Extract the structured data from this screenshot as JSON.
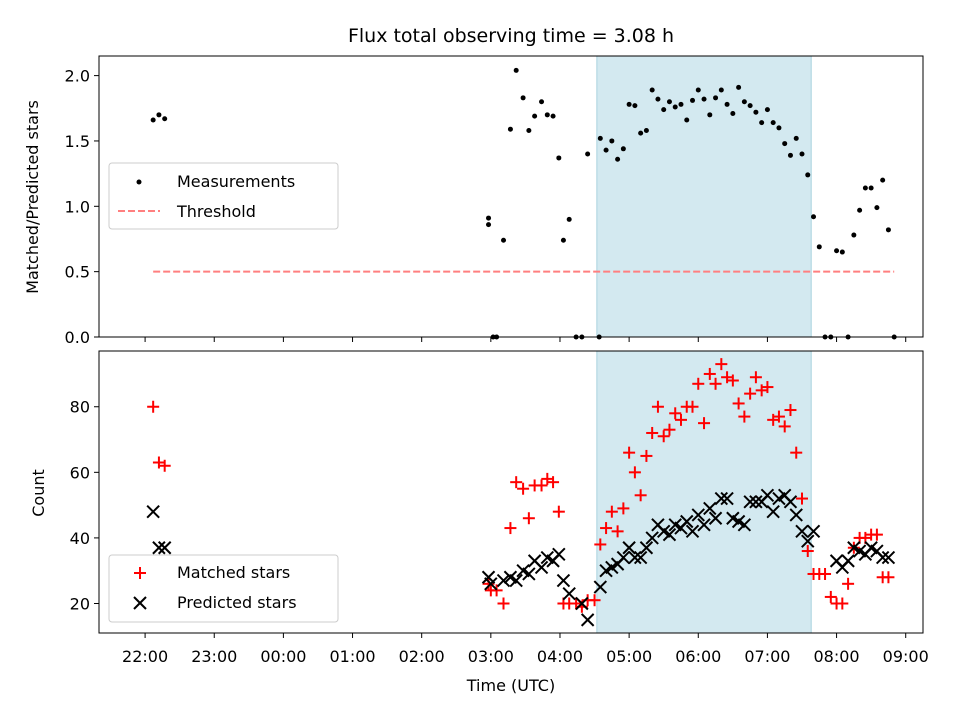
{
  "figure": {
    "title": "Flux total observing time = 3.08 h",
    "xlabel": "Time (UTC)",
    "x_ticks": [
      "22:00",
      "23:00",
      "00:00",
      "01:00",
      "02:00",
      "03:00",
      "04:00",
      "05:00",
      "06:00",
      "07:00",
      "08:00",
      "09:00"
    ],
    "x_range": [
      "21:20",
      "09:15"
    ],
    "observing_window": {
      "start": "04:32",
      "end": "07:38",
      "color": "#d3e9f0"
    }
  },
  "chart_data": [
    {
      "type": "scatter",
      "panel": "top",
      "ylabel": "Matched/Predicted stars",
      "ylim": [
        0,
        2.15
      ],
      "yticks": [
        "0.0",
        "0.5",
        "1.0",
        "1.5",
        "2.0"
      ],
      "legend_position": "center-left",
      "series": [
        {
          "name": "Measurements",
          "color": "#000000",
          "marker": "dot",
          "points": [
            [
              "22:07",
              1.66
            ],
            [
              "22:12",
              1.7
            ],
            [
              "22:17",
              1.67
            ],
            [
              "02:58",
              0.91
            ],
            [
              "02:58",
              0.86
            ],
            [
              "03:02",
              0.0
            ],
            [
              "03:05",
              0.0
            ],
            [
              "03:11",
              0.74
            ],
            [
              "03:17",
              1.59
            ],
            [
              "03:22",
              2.04
            ],
            [
              "03:28",
              1.83
            ],
            [
              "03:33",
              1.58
            ],
            [
              "03:38",
              1.69
            ],
            [
              "03:44",
              1.8
            ],
            [
              "03:49",
              1.7
            ],
            [
              "03:54",
              1.69
            ],
            [
              "03:59",
              1.37
            ],
            [
              "04:03",
              0.74
            ],
            [
              "04:08",
              0.9
            ],
            [
              "04:14",
              0.0
            ],
            [
              "04:19",
              0.0
            ],
            [
              "04:24",
              1.4
            ],
            [
              "04:34",
              0.0
            ],
            [
              "04:35",
              1.52
            ],
            [
              "04:40",
              1.43
            ],
            [
              "04:45",
              1.5
            ],
            [
              "04:50",
              1.36
            ],
            [
              "04:55",
              1.44
            ],
            [
              "05:00",
              1.78
            ],
            [
              "05:05",
              1.77
            ],
            [
              "05:10",
              1.56
            ],
            [
              "05:15",
              1.58
            ],
            [
              "05:20",
              1.89
            ],
            [
              "05:25",
              1.82
            ],
            [
              "05:30",
              1.74
            ],
            [
              "05:35",
              1.8
            ],
            [
              "05:40",
              1.76
            ],
            [
              "05:45",
              1.78
            ],
            [
              "05:50",
              1.66
            ],
            [
              "05:55",
              1.81
            ],
            [
              "06:00",
              1.89
            ],
            [
              "06:05",
              1.82
            ],
            [
              "06:10",
              1.7
            ],
            [
              "06:15",
              1.83
            ],
            [
              "06:20",
              1.89
            ],
            [
              "06:25",
              1.78
            ],
            [
              "06:30",
              1.71
            ],
            [
              "06:35",
              1.91
            ],
            [
              "06:40",
              1.8
            ],
            [
              "06:45",
              1.77
            ],
            [
              "06:50",
              1.72
            ],
            [
              "06:55",
              1.64
            ],
            [
              "07:00",
              1.74
            ],
            [
              "07:05",
              1.64
            ],
            [
              "07:10",
              1.6
            ],
            [
              "07:15",
              1.48
            ],
            [
              "07:20",
              1.39
            ],
            [
              "07:25",
              1.52
            ],
            [
              "07:30",
              1.4
            ],
            [
              "07:35",
              1.24
            ],
            [
              "07:40",
              0.92
            ],
            [
              "07:45",
              0.69
            ],
            [
              "07:50",
              0.0
            ],
            [
              "07:55",
              0.0
            ],
            [
              "08:00",
              0.66
            ],
            [
              "08:05",
              0.65
            ],
            [
              "08:10",
              0.0
            ],
            [
              "08:15",
              0.78
            ],
            [
              "08:20",
              0.97
            ],
            [
              "08:25",
              1.14
            ],
            [
              "08:30",
              1.14
            ],
            [
              "08:35",
              0.99
            ],
            [
              "08:40",
              1.2
            ],
            [
              "08:45",
              0.82
            ],
            [
              "08:50",
              0.0
            ]
          ]
        },
        {
          "name": "Threshold",
          "color": "#ff7f7f",
          "line": "dashed",
          "points": [
            [
              "22:07",
              0.5
            ],
            [
              "08:50",
              0.5
            ]
          ]
        }
      ]
    },
    {
      "type": "scatter",
      "panel": "bottom",
      "ylabel": "Count",
      "ylim": [
        11,
        97
      ],
      "yticks": [
        "20",
        "40",
        "60",
        "80"
      ],
      "legend_position": "lower-left",
      "series": [
        {
          "name": "Matched stars",
          "color": "#ff0000",
          "marker": "plus",
          "points": [
            [
              "22:07",
              80
            ],
            [
              "22:12",
              63
            ],
            [
              "22:17",
              62
            ],
            [
              "02:58",
              26
            ],
            [
              "03:00",
              24
            ],
            [
              "03:05",
              24
            ],
            [
              "03:11",
              20
            ],
            [
              "03:17",
              43
            ],
            [
              "03:22",
              57
            ],
            [
              "03:28",
              55
            ],
            [
              "03:33",
              46
            ],
            [
              "03:38",
              56
            ],
            [
              "03:44",
              56
            ],
            [
              "03:49",
              58
            ],
            [
              "03:54",
              57
            ],
            [
              "03:59",
              48
            ],
            [
              "04:03",
              20
            ],
            [
              "04:08",
              20
            ],
            [
              "04:14",
              20
            ],
            [
              "04:19",
              19
            ],
            [
              "04:24",
              21
            ],
            [
              "04:30",
              21
            ],
            [
              "04:35",
              38
            ],
            [
              "04:40",
              43
            ],
            [
              "04:45",
              48
            ],
            [
              "04:50",
              42
            ],
            [
              "04:55",
              49
            ],
            [
              "05:00",
              66
            ],
            [
              "05:05",
              60
            ],
            [
              "05:10",
              53
            ],
            [
              "05:15",
              65
            ],
            [
              "05:20",
              72
            ],
            [
              "05:25",
              80
            ],
            [
              "05:30",
              71
            ],
            [
              "05:35",
              73
            ],
            [
              "05:40",
              78
            ],
            [
              "05:45",
              76
            ],
            [
              "05:50",
              80
            ],
            [
              "05:55",
              80
            ],
            [
              "06:00",
              87
            ],
            [
              "06:05",
              75
            ],
            [
              "06:10",
              90
            ],
            [
              "06:15",
              87
            ],
            [
              "06:20",
              93
            ],
            [
              "06:25",
              89
            ],
            [
              "06:30",
              88
            ],
            [
              "06:35",
              81
            ],
            [
              "06:40",
              77
            ],
            [
              "06:45",
              84
            ],
            [
              "06:50",
              89
            ],
            [
              "06:55",
              85
            ],
            [
              "07:00",
              86
            ],
            [
              "07:05",
              76
            ],
            [
              "07:10",
              77
            ],
            [
              "07:15",
              74
            ],
            [
              "07:20",
              79
            ],
            [
              "07:25",
              66
            ],
            [
              "07:30",
              52
            ],
            [
              "07:35",
              36
            ],
            [
              "07:40",
              29
            ],
            [
              "07:45",
              29
            ],
            [
              "07:50",
              29
            ],
            [
              "07:55",
              22
            ],
            [
              "08:00",
              20
            ],
            [
              "08:05",
              20
            ],
            [
              "08:10",
              26
            ],
            [
              "08:15",
              37
            ],
            [
              "08:20",
              40
            ],
            [
              "08:25",
              40
            ],
            [
              "08:30",
              41
            ],
            [
              "08:35",
              41
            ],
            [
              "08:40",
              28
            ],
            [
              "08:45",
              28
            ]
          ]
        },
        {
          "name": "Predicted stars",
          "color": "#000000",
          "marker": "x",
          "points": [
            [
              "22:07",
              48
            ],
            [
              "22:12",
              37
            ],
            [
              "22:17",
              37
            ],
            [
              "02:58",
              28
            ],
            [
              "03:00",
              26
            ],
            [
              "03:11",
              27
            ],
            [
              "03:17",
              28
            ],
            [
              "03:22",
              27
            ],
            [
              "03:28",
              30
            ],
            [
              "03:33",
              29
            ],
            [
              "03:38",
              33
            ],
            [
              "03:44",
              31
            ],
            [
              "03:49",
              34
            ],
            [
              "03:54",
              33
            ],
            [
              "03:59",
              35
            ],
            [
              "04:03",
              27
            ],
            [
              "04:08",
              23
            ],
            [
              "04:19",
              20
            ],
            [
              "04:24",
              15
            ],
            [
              "04:35",
              25
            ],
            [
              "04:40",
              30
            ],
            [
              "04:45",
              31
            ],
            [
              "04:50",
              32
            ],
            [
              "04:55",
              34
            ],
            [
              "05:00",
              37
            ],
            [
              "05:05",
              34
            ],
            [
              "05:10",
              34
            ],
            [
              "05:15",
              37
            ],
            [
              "05:20",
              40
            ],
            [
              "05:25",
              44
            ],
            [
              "05:30",
              42
            ],
            [
              "05:35",
              41
            ],
            [
              "05:40",
              44
            ],
            [
              "05:45",
              43
            ],
            [
              "05:50",
              45
            ],
            [
              "05:55",
              42
            ],
            [
              "06:00",
              47
            ],
            [
              "06:05",
              44
            ],
            [
              "06:10",
              49
            ],
            [
              "06:15",
              46
            ],
            [
              "06:20",
              52
            ],
            [
              "06:25",
              52
            ],
            [
              "06:30",
              46
            ],
            [
              "06:35",
              45
            ],
            [
              "06:40",
              44
            ],
            [
              "06:45",
              51
            ],
            [
              "06:50",
              51
            ],
            [
              "06:55",
              51
            ],
            [
              "07:00",
              53
            ],
            [
              "07:05",
              48
            ],
            [
              "07:10",
              52
            ],
            [
              "07:15",
              53
            ],
            [
              "07:20",
              51
            ],
            [
              "07:25",
              47
            ],
            [
              "07:30",
              42
            ],
            [
              "07:35",
              39
            ],
            [
              "07:40",
              42
            ],
            [
              "08:00",
              33
            ],
            [
              "08:05",
              31
            ],
            [
              "08:10",
              33
            ],
            [
              "08:15",
              37
            ],
            [
              "08:20",
              36
            ],
            [
              "08:25",
              35
            ],
            [
              "08:30",
              37
            ],
            [
              "08:35",
              36
            ],
            [
              "08:40",
              34
            ],
            [
              "08:45",
              34
            ]
          ]
        }
      ]
    }
  ]
}
